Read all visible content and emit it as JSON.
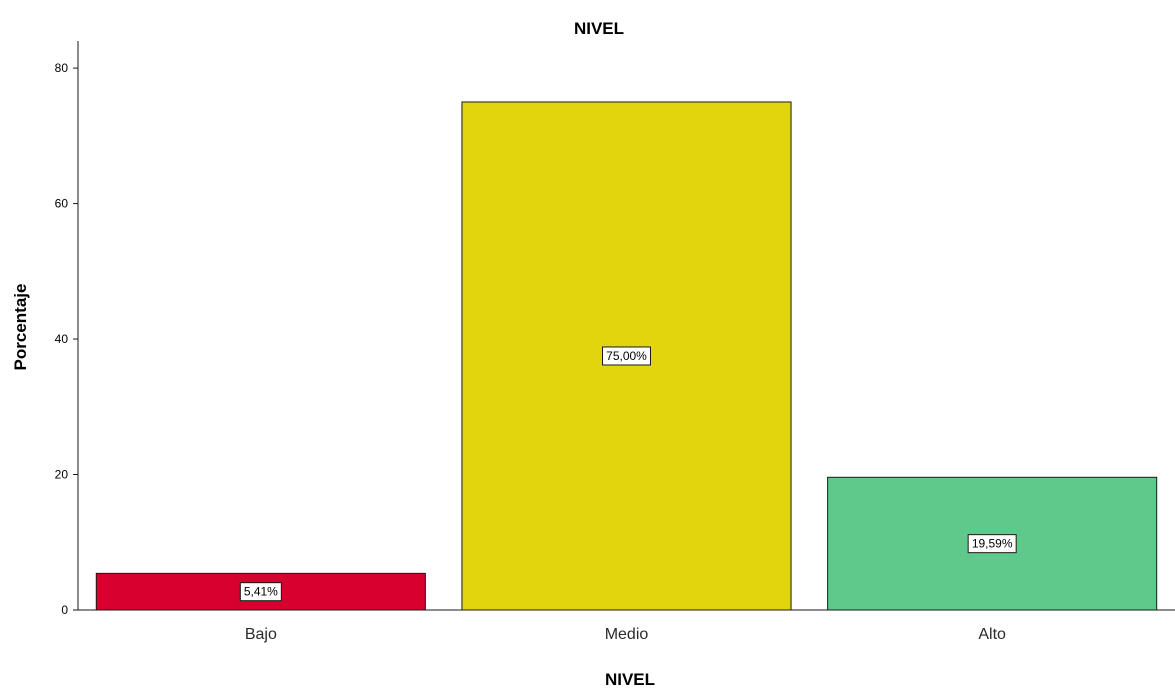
{
  "chart_data": {
    "type": "bar",
    "title": "NIVEL",
    "xlabel": "NIVEL",
    "ylabel": "Porcentaje",
    "categories": [
      "Bajo",
      "Medio",
      "Alto"
    ],
    "values": [
      5.41,
      75.0,
      19.59
    ],
    "data_labels": [
      "5,41%",
      "75,00%",
      "19,59%"
    ],
    "colors": [
      "#d6002e",
      "#e1d50d",
      "#5ec98a"
    ],
    "ylim": [
      0,
      84
    ],
    "yticks": [
      0,
      20,
      40,
      60,
      80
    ],
    "grid": false,
    "legend": "none"
  }
}
